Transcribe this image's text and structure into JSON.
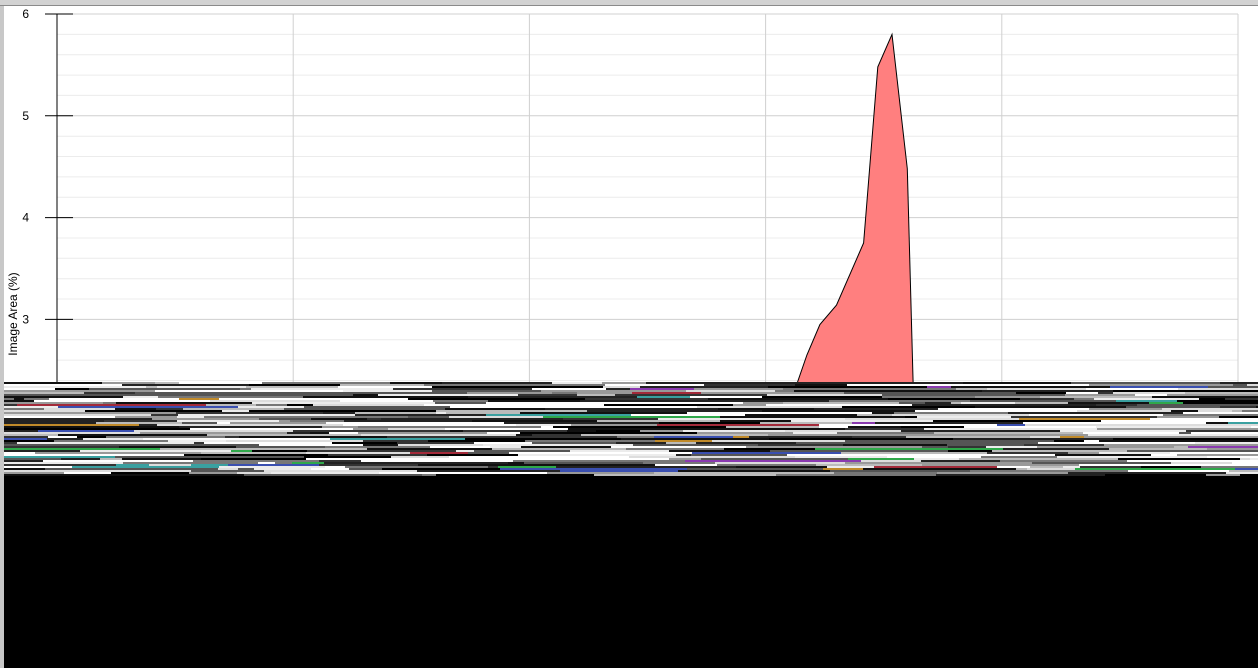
{
  "window": {
    "colors": {
      "frame": "#c8c8c8",
      "panel": "#ffffff",
      "lower_region": "#000000"
    }
  },
  "chart_data": {
    "type": "area",
    "ylabel": "Image Area (%)",
    "ylim_visible": [
      2.35,
      6
    ],
    "yticks": [
      3,
      4,
      5,
      6
    ],
    "grid": true,
    "legend": "none",
    "fill_color": "#ff7f7f",
    "stroke_color": "#000000",
    "series": [
      {
        "x": [
          0.626,
          0.635,
          0.646,
          0.66,
          0.683,
          0.695,
          0.707,
          0.72,
          0.725
        ],
        "y": [
          2.35,
          2.65,
          2.95,
          3.14,
          3.75,
          5.48,
          5.8,
          4.48,
          2.35
        ]
      }
    ]
  }
}
